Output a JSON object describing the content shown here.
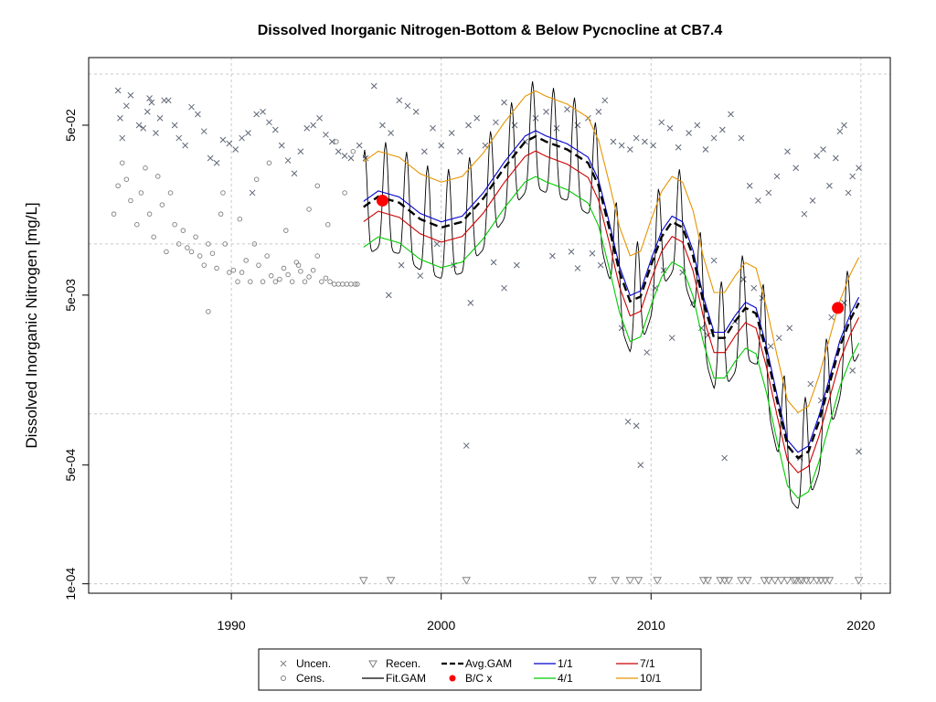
{
  "chart_data": {
    "type": "scatter",
    "title": "Dissolved Inorganic Nitrogen-Bottom & Below Pycnocline at CB7.4",
    "xlabel": "",
    "ylabel": "Dissolved Inorganic Nitrogen [mg/L]",
    "y_scale": "log",
    "xlim": [
      1983.2,
      2021.4
    ],
    "ylim": [
      8.8e-05,
      0.125
    ],
    "x_ticks": [
      1990,
      2000,
      2010,
      2020
    ],
    "y_ticks": [
      0.0001,
      0.0005,
      0.005,
      0.05
    ],
    "y_tick_labels": [
      "1e-04",
      "5e-04",
      "5e-03",
      "5e-02"
    ],
    "grid_y": [
      0.0001,
      0.001,
      0.01,
      0.1
    ],
    "grid": true,
    "legend_position": "bottom",
    "legend": [
      {
        "label": "Uncen.",
        "symbol": "cross",
        "color": "#7f7f7f"
      },
      {
        "label": "Cens.",
        "symbol": "circle",
        "color": "#7f7f7f"
      },
      {
        "label": "Recen.",
        "symbol": "triangle-down",
        "color": "#7f7f7f"
      },
      {
        "label": "Fit.GAM",
        "symbol": "line",
        "color": "#000000"
      },
      {
        "label": "Avg.GAM",
        "symbol": "dashed-line",
        "color": "#000000"
      },
      {
        "label": "B/C x",
        "symbol": "dot",
        "color": "#ff0000"
      },
      {
        "label": "1/1",
        "symbol": "line",
        "color": "#0000cc"
      },
      {
        "label": "4/1",
        "symbol": "line",
        "color": "#00cc00"
      },
      {
        "label": "7/1",
        "symbol": "line",
        "color": "#cc0000"
      },
      {
        "label": "10/1",
        "symbol": "line",
        "color": "#e69500"
      }
    ],
    "colors": {
      "observations": "#7f7f7f",
      "fit": "#000000",
      "avg": "#000000",
      "bc": "#ff0000",
      "d1_1": "#0000cc",
      "d4_1": "#00cc00",
      "d7_1": "#cc0000",
      "d10_1": "#e69500"
    },
    "avg_gam": {
      "x": [
        1996.3,
        1997,
        1998,
        1999,
        2000,
        2001,
        2002,
        2003,
        2004,
        2004.5,
        2005,
        2006,
        2007,
        2007.5,
        2008,
        2008.5,
        2009,
        2009.5,
        2010,
        2010.5,
        2011,
        2011.5,
        2012,
        2012.5,
        2013,
        2013.5,
        2014,
        2014.5,
        2015,
        2015.5,
        2016,
        2016.5,
        2017,
        2017.5,
        2018,
        2018.5,
        2019,
        2019.5,
        2019.9
      ],
      "y": [
        0.0165,
        0.019,
        0.0175,
        0.014,
        0.0125,
        0.0135,
        0.0185,
        0.028,
        0.04,
        0.043,
        0.04,
        0.036,
        0.03,
        0.022,
        0.0125,
        0.0068,
        0.0046,
        0.0049,
        0.0075,
        0.011,
        0.0135,
        0.0125,
        0.0085,
        0.0045,
        0.0028,
        0.0028,
        0.0035,
        0.0042,
        0.0039,
        0.0023,
        0.0012,
        0.00065,
        0.00055,
        0.0006,
        0.0009,
        0.0015,
        0.0025,
        0.0036,
        0.0045
      ]
    },
    "scenario_curves": [
      {
        "name": "1/1",
        "factor": 1.08,
        "color": "#0000cc"
      },
      {
        "name": "4/1",
        "factor": 0.58,
        "color": "#00cc00"
      },
      {
        "name": "7/1",
        "factor": 0.82,
        "color": "#cc0000"
      },
      {
        "name": "10/1",
        "factor": 1.85,
        "color": "#e69500"
      }
    ],
    "fit_gam_range": [
      0.5,
      2.15
    ],
    "bc_points": [
      {
        "x": 1997.2,
        "y": 0.018
      },
      {
        "x": 2018.9,
        "y": 0.0042
      }
    ],
    "uncensored": [
      [
        1984.6,
        0.08
      ],
      [
        1984.7,
        0.055
      ],
      [
        1984.8,
        0.042
      ],
      [
        1985.0,
        0.065
      ],
      [
        1985.2,
        0.075
      ],
      [
        1985.6,
        0.05
      ],
      [
        1985.8,
        0.048
      ],
      [
        1986.0,
        0.06
      ],
      [
        1986.1,
        0.072
      ],
      [
        1986.2,
        0.068
      ],
      [
        1986.4,
        0.045
      ],
      [
        1986.6,
        0.055
      ],
      [
        1986.8,
        0.07
      ],
      [
        1987.0,
        0.07
      ],
      [
        1987.3,
        0.05
      ],
      [
        1987.5,
        0.042
      ],
      [
        1987.8,
        0.038
      ],
      [
        1988.1,
        0.064
      ],
      [
        1988.4,
        0.058
      ],
      [
        1988.7,
        0.046
      ],
      [
        1989.0,
        0.032
      ],
      [
        1989.3,
        0.03
      ],
      [
        1989.6,
        0.041
      ],
      [
        1989.9,
        0.039
      ],
      [
        1990.2,
        0.036
      ],
      [
        1990.5,
        0.042
      ],
      [
        1990.8,
        0.045
      ],
      [
        1991.0,
        0.02
      ],
      [
        1991.2,
        0.058
      ],
      [
        1991.5,
        0.06
      ],
      [
        1991.8,
        0.052
      ],
      [
        1992.1,
        0.047
      ],
      [
        1992.4,
        0.038
      ],
      [
        1992.7,
        0.031
      ],
      [
        1993.0,
        0.026
      ],
      [
        1993.3,
        0.035
      ],
      [
        1993.6,
        0.048
      ],
      [
        1993.9,
        0.05
      ],
      [
        1994.2,
        0.055
      ],
      [
        1994.5,
        0.044
      ],
      [
        1994.8,
        0.04
      ],
      [
        1995.1,
        0.035
      ],
      [
        1995.4,
        0.033
      ],
      [
        1995.7,
        0.032
      ],
      [
        1996.1,
        0.038
      ],
      [
        1996.4,
        0.032
      ],
      [
        1996.8,
        0.085
      ],
      [
        1997.2,
        0.05
      ],
      [
        1997.6,
        0.045
      ],
      [
        1998.0,
        0.07
      ],
      [
        1998.4,
        0.065
      ],
      [
        1998.8,
        0.06
      ],
      [
        1999.2,
        0.035
      ],
      [
        1999.6,
        0.048
      ],
      [
        2000.0,
        0.038
      ],
      [
        2000.5,
        0.045
      ],
      [
        2000.9,
        0.035
      ],
      [
        2001.3,
        0.05
      ],
      [
        2001.7,
        0.055
      ],
      [
        2002.1,
        0.038
      ],
      [
        2002.6,
        0.052
      ],
      [
        2003.0,
        0.068
      ],
      [
        2003.5,
        0.05
      ],
      [
        2004.0,
        0.04
      ],
      [
        2004.5,
        0.055
      ],
      [
        2005.0,
        0.06
      ],
      [
        2005.5,
        0.048
      ],
      [
        2006.0,
        0.062
      ],
      [
        2006.5,
        0.05
      ],
      [
        2007.0,
        0.055
      ],
      [
        2007.5,
        0.06
      ],
      [
        2007.8,
        0.07
      ],
      [
        2008.2,
        0.04
      ],
      [
        2008.6,
        0.038
      ],
      [
        2009.0,
        0.036
      ],
      [
        2009.3,
        0.042
      ],
      [
        2009.7,
        0.04
      ],
      [
        2010.1,
        0.038
      ],
      [
        2010.5,
        0.052
      ],
      [
        2010.9,
        0.048
      ],
      [
        2011.3,
        0.037
      ],
      [
        2011.8,
        0.045
      ],
      [
        2012.2,
        0.05
      ],
      [
        2012.6,
        0.036
      ],
      [
        2013.0,
        0.042
      ],
      [
        2013.4,
        0.047
      ],
      [
        2013.8,
        0.058
      ],
      [
        2014.3,
        0.042
      ],
      [
        2014.7,
        0.022
      ],
      [
        2015.1,
        0.018
      ],
      [
        2015.6,
        0.02
      ],
      [
        2016.0,
        0.025
      ],
      [
        2016.5,
        0.035
      ],
      [
        2016.9,
        0.028
      ],
      [
        2017.3,
        0.015
      ],
      [
        2017.7,
        0.018
      ],
      [
        2017.9,
        0.033
      ],
      [
        2018.2,
        0.036
      ],
      [
        2018.5,
        0.022
      ],
      [
        2018.8,
        0.032
      ],
      [
        2019.0,
        0.046
      ],
      [
        2019.2,
        0.05
      ],
      [
        2019.4,
        0.02
      ],
      [
        2019.6,
        0.025
      ],
      [
        2019.9,
        0.028
      ],
      [
        1997.5,
        0.005
      ],
      [
        1998.1,
        0.0075
      ],
      [
        1999.0,
        0.0065
      ],
      [
        1999.8,
        0.01
      ],
      [
        2000.6,
        0.0075
      ],
      [
        2001.2,
        0.00065
      ],
      [
        2001.4,
        0.0045
      ],
      [
        2002.5,
        0.0078
      ],
      [
        2003.0,
        0.0055
      ],
      [
        2003.6,
        0.0075
      ],
      [
        2005.3,
        0.0085
      ],
      [
        2006.2,
        0.009
      ],
      [
        2006.5,
        0.0072
      ],
      [
        2007.2,
        0.0088
      ],
      [
        2007.6,
        0.0075
      ],
      [
        2008.6,
        0.0032
      ],
      [
        2008.9,
        0.0009
      ],
      [
        2009.3,
        0.00085
      ],
      [
        2009.5,
        0.0005
      ],
      [
        2009.8,
        0.0023
      ],
      [
        2010.2,
        0.0055
      ],
      [
        2010.6,
        0.007
      ],
      [
        2011.0,
        0.0028
      ],
      [
        2011.5,
        0.0068
      ],
      [
        2012.0,
        0.0045
      ],
      [
        2012.4,
        0.0032
      ],
      [
        2012.7,
        0.0029
      ],
      [
        2013.0,
        0.008
      ],
      [
        2013.5,
        0.00055
      ],
      [
        2014.0,
        0.0035
      ],
      [
        2014.4,
        0.0062
      ],
      [
        2014.9,
        0.0055
      ],
      [
        2015.3,
        0.0048
      ],
      [
        2015.7,
        0.0025
      ],
      [
        2016.1,
        0.0028
      ],
      [
        2016.6,
        0.0032
      ],
      [
        2017.1,
        0.00055
      ],
      [
        2017.6,
        0.0015
      ],
      [
        2018.1,
        0.0012
      ],
      [
        2018.6,
        0.0037
      ],
      [
        2019.2,
        0.0045
      ],
      [
        2019.6,
        0.0018
      ],
      [
        2019.9,
        0.0006
      ]
    ],
    "censored": [
      [
        1984.4,
        0.015
      ],
      [
        1984.6,
        0.022
      ],
      [
        1984.8,
        0.03
      ],
      [
        1985.0,
        0.024
      ],
      [
        1985.2,
        0.018
      ],
      [
        1985.5,
        0.013
      ],
      [
        1985.7,
        0.02
      ],
      [
        1985.9,
        0.028
      ],
      [
        1986.1,
        0.015
      ],
      [
        1986.3,
        0.011
      ],
      [
        1986.5,
        0.025
      ],
      [
        1986.7,
        0.017
      ],
      [
        1986.9,
        0.009
      ],
      [
        1987.1,
        0.02
      ],
      [
        1987.3,
        0.013
      ],
      [
        1987.5,
        0.01
      ],
      [
        1987.7,
        0.012
      ],
      [
        1987.9,
        0.0095
      ],
      [
        1988.1,
        0.009
      ],
      [
        1988.3,
        0.011
      ],
      [
        1988.5,
        0.0085
      ],
      [
        1988.7,
        0.0075
      ],
      [
        1988.9,
        0.01
      ],
      [
        1989.1,
        0.0088
      ],
      [
        1989.3,
        0.0072
      ],
      [
        1989.5,
        0.015
      ],
      [
        1989.7,
        0.01
      ],
      [
        1989.9,
        0.0068
      ],
      [
        1990.1,
        0.007
      ],
      [
        1990.3,
        0.006
      ],
      [
        1990.5,
        0.0068
      ],
      [
        1990.7,
        0.008
      ],
      [
        1990.9,
        0.006
      ],
      [
        1991.1,
        0.01
      ],
      [
        1991.3,
        0.0075
      ],
      [
        1991.5,
        0.006
      ],
      [
        1991.7,
        0.0085
      ],
      [
        1991.9,
        0.0065
      ],
      [
        1992.1,
        0.006
      ],
      [
        1992.3,
        0.0062
      ],
      [
        1992.5,
        0.0072
      ],
      [
        1992.7,
        0.0066
      ],
      [
        1992.9,
        0.006
      ],
      [
        1993.1,
        0.0078
      ],
      [
        1993.3,
        0.0069
      ],
      [
        1993.5,
        0.006
      ],
      [
        1993.7,
        0.0064
      ],
      [
        1993.9,
        0.007
      ],
      [
        1994.1,
        0.0085
      ],
      [
        1994.3,
        0.006
      ],
      [
        1994.5,
        0.0063
      ],
      [
        1994.7,
        0.006
      ],
      [
        1994.9,
        0.0058
      ],
      [
        1995.1,
        0.0058
      ],
      [
        1995.3,
        0.0058
      ],
      [
        1995.5,
        0.0058
      ],
      [
        1995.7,
        0.0058
      ],
      [
        1995.9,
        0.0058
      ],
      [
        1996.0,
        0.0058
      ],
      [
        1988.9,
        0.004
      ],
      [
        1989.6,
        0.02
      ],
      [
        1990.4,
        0.014
      ],
      [
        1991.2,
        0.024
      ],
      [
        1991.8,
        0.03
      ],
      [
        1992.6,
        0.012
      ],
      [
        1993.2,
        0.0075
      ],
      [
        1993.7,
        0.016
      ],
      [
        1994.1,
        0.022
      ],
      [
        1994.6,
        0.013
      ],
      [
        1995.0,
        0.04
      ],
      [
        1995.4,
        0.02
      ],
      [
        1995.8,
        0.035
      ]
    ],
    "recensored": [
      1996.3,
      1997.6,
      2001.2,
      2007.2,
      2008.3,
      2009.0,
      2009.4,
      2010.3,
      2012.5,
      2012.7,
      2013.3,
      2013.5,
      2013.7,
      2014.3,
      2014.6,
      2015.4,
      2015.6,
      2015.9,
      2016.2,
      2016.5,
      2016.8,
      2016.9,
      2017.1,
      2017.2,
      2017.4,
      2017.6,
      2017.9,
      2018.1,
      2018.3,
      2018.5,
      2019.9
    ],
    "recensored_y": 0.000105
  }
}
